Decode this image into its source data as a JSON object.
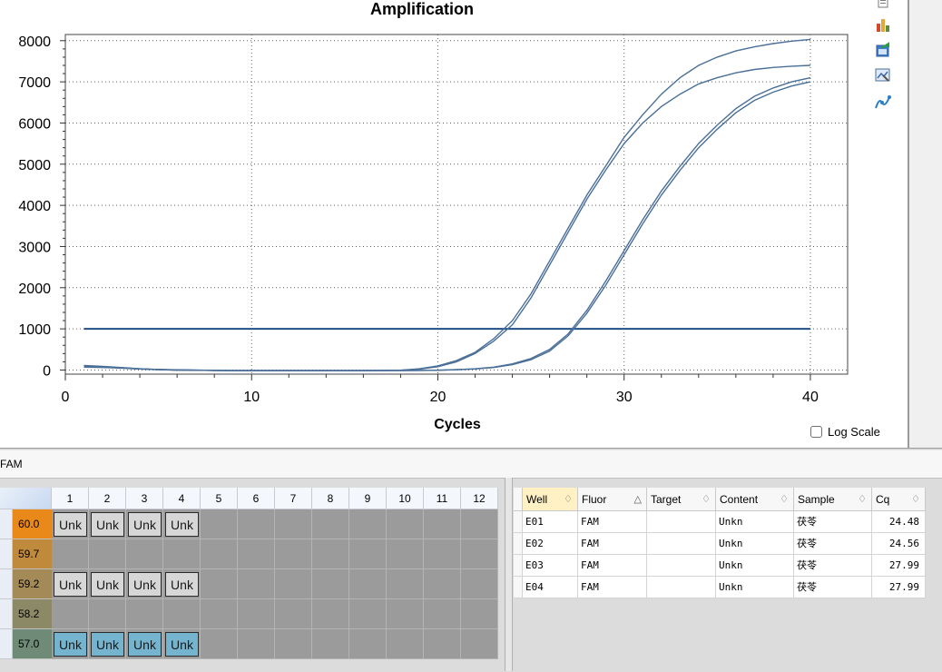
{
  "chart_data": {
    "type": "line",
    "title": "Amplification",
    "xlabel": "Cycles",
    "ylabel": "",
    "xlim": [
      0,
      42
    ],
    "ylim": [
      -100,
      8150
    ],
    "x_ticks": [
      0,
      10,
      20,
      30,
      40
    ],
    "y_ticks": [
      0,
      1000,
      2000,
      3000,
      4000,
      5000,
      6000,
      7000,
      8000
    ],
    "grid": true,
    "threshold": 1000,
    "line_color": "#4a6f98",
    "threshold_color": "#1f4e86",
    "series": [
      {
        "x": [
          1,
          2,
          3,
          4,
          5,
          6,
          7,
          8,
          9,
          10,
          11,
          12,
          13,
          14,
          15,
          16,
          17,
          18,
          19,
          20,
          21,
          22,
          23,
          24,
          25,
          26,
          27,
          28,
          29,
          30,
          31,
          32,
          33,
          34,
          35,
          36,
          37,
          38,
          39,
          40
        ],
        "values": [
          110,
          90,
          60,
          30,
          15,
          5,
          0,
          -10,
          -15,
          -15,
          -15,
          -15,
          -15,
          -15,
          -15,
          -15,
          -10,
          -5,
          30,
          100,
          230,
          430,
          760,
          1200,
          1850,
          2650,
          3450,
          4250,
          4950,
          5650,
          6200,
          6700,
          7100,
          7400,
          7600,
          7750,
          7850,
          7930,
          7990,
          8030
        ]
      },
      {
        "x": [
          1,
          2,
          3,
          4,
          5,
          6,
          7,
          8,
          9,
          10,
          11,
          12,
          13,
          14,
          15,
          16,
          17,
          18,
          19,
          20,
          21,
          22,
          23,
          24,
          25,
          26,
          27,
          28,
          29,
          30,
          31,
          32,
          33,
          34,
          35,
          36,
          37,
          38,
          39,
          40
        ],
        "values": [
          80,
          70,
          50,
          25,
          10,
          0,
          -5,
          -10,
          -15,
          -15,
          -15,
          -15,
          -15,
          -15,
          -15,
          -15,
          -10,
          -5,
          20,
          80,
          200,
          400,
          700,
          1100,
          1750,
          2550,
          3350,
          4150,
          4850,
          5500,
          6000,
          6400,
          6700,
          6950,
          7100,
          7220,
          7300,
          7350,
          7380,
          7400
        ]
      },
      {
        "x": [
          1,
          2,
          3,
          4,
          5,
          6,
          7,
          8,
          9,
          10,
          11,
          12,
          13,
          14,
          15,
          16,
          17,
          18,
          19,
          20,
          21,
          22,
          23,
          24,
          25,
          26,
          27,
          28,
          29,
          30,
          31,
          32,
          33,
          34,
          35,
          36,
          37,
          38,
          39,
          40
        ],
        "values": [
          90,
          75,
          55,
          30,
          10,
          0,
          -5,
          -10,
          -15,
          -15,
          -15,
          -15,
          -15,
          -15,
          -15,
          -15,
          -15,
          -15,
          -10,
          -5,
          10,
          30,
          70,
          150,
          280,
          500,
          880,
          1450,
          2150,
          2900,
          3650,
          4350,
          4950,
          5500,
          5950,
          6350,
          6650,
          6850,
          7000,
          7100
        ]
      },
      {
        "x": [
          1,
          2,
          3,
          4,
          5,
          6,
          7,
          8,
          9,
          10,
          11,
          12,
          13,
          14,
          15,
          16,
          17,
          18,
          19,
          20,
          21,
          22,
          23,
          24,
          25,
          26,
          27,
          28,
          29,
          30,
          31,
          32,
          33,
          34,
          35,
          36,
          37,
          38,
          39,
          40
        ],
        "values": [
          70,
          60,
          45,
          25,
          10,
          0,
          -5,
          -10,
          -15,
          -15,
          -15,
          -15,
          -15,
          -15,
          -15,
          -15,
          -15,
          -15,
          -10,
          -5,
          5,
          25,
          60,
          130,
          250,
          460,
          830,
          1380,
          2050,
          2800,
          3550,
          4250,
          4850,
          5400,
          5850,
          6250,
          6550,
          6750,
          6900,
          7000
        ]
      }
    ]
  },
  "log_scale": {
    "label": "Log Scale",
    "checked": false
  },
  "fluor_label": "FAM",
  "plate": {
    "columns": [
      "1",
      "2",
      "3",
      "4",
      "5",
      "6",
      "7",
      "8",
      "9",
      "10",
      "11",
      "12"
    ],
    "rows": [
      {
        "temp": "60.0",
        "color": "#e8891a",
        "wells": [
          "Unk",
          "Unk",
          "Unk",
          "Unk"
        ],
        "style": "gray"
      },
      {
        "temp": "59.7",
        "color": "#bf8a3c",
        "wells": [],
        "style": "gray"
      },
      {
        "temp": "59.2",
        "color": "#a48a56",
        "wells": [
          "Unk",
          "Unk",
          "Unk",
          "Unk"
        ],
        "style": "gray"
      },
      {
        "temp": "58.2",
        "color": "#8c8a66",
        "wells": [],
        "style": "gray"
      },
      {
        "temp": "57.0",
        "color": "#6f8a77",
        "wells": [
          "Unk",
          "Unk",
          "Unk",
          "Unk"
        ],
        "style": "blue"
      }
    ]
  },
  "results": {
    "headers": [
      "Well",
      "Fluor",
      "Target",
      "Content",
      "Sample",
      "Cq"
    ],
    "rows": [
      [
        "E01",
        "FAM",
        "",
        "Unkn",
        "茯苓",
        "24.48"
      ],
      [
        "E02",
        "FAM",
        "",
        "Unkn",
        "茯苓",
        "24.56"
      ],
      [
        "E03",
        "FAM",
        "",
        "Unkn",
        "茯苓",
        "27.99"
      ],
      [
        "E04",
        "FAM",
        "",
        "Unkn",
        "茯苓",
        "27.99"
      ]
    ]
  }
}
